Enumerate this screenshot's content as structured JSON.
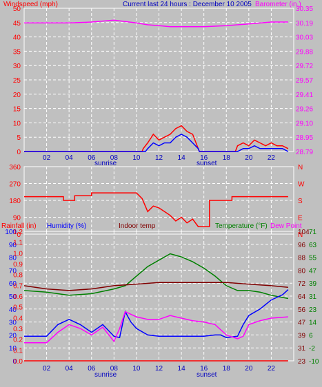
{
  "chart_data": [
    {
      "type": "line",
      "title": "Current last 24 hours : December 10 2005",
      "ylabel": "Windspeed (mph)",
      "y2label": "Barometer (in.)",
      "xticks": [
        "02",
        "04",
        "06",
        "08",
        "10",
        "12",
        "14",
        "16",
        "18",
        "20",
        "22"
      ],
      "xlim": [
        0,
        24
      ],
      "ylim": [
        0,
        50
      ],
      "yticks": [
        "0",
        "5",
        "10",
        "15",
        "20",
        "25",
        "30",
        "35",
        "40",
        "45",
        "50"
      ],
      "y2lim": [
        28.79,
        30.35
      ],
      "y2ticks": [
        "28.79",
        "28.95",
        "29.10",
        "29.26",
        "29.41",
        "29.57",
        "29.72",
        "29.88",
        "30.03",
        "30.19",
        "30.35"
      ],
      "annotations": [
        "sunrise",
        "sunset"
      ],
      "colors": {
        "windspeed_axis": "#ff0000",
        "gust": "#ff0000",
        "speed": "#0000ff",
        "barometer": "#ff00ff",
        "title": "#0000c0"
      },
      "series": [
        {
          "axis": "y2",
          "x": [
            0,
            2,
            4,
            6,
            8,
            10,
            11,
            12,
            13,
            14,
            15,
            16,
            18,
            20,
            22,
            23.5
          ],
          "values": [
            30.19,
            30.19,
            30.19,
            30.2,
            30.22,
            30.19,
            30.17,
            30.16,
            30.15,
            30.15,
            30.15,
            30.15,
            30.16,
            30.18,
            30.2,
            30.2
          ]
        },
        {
          "axis": "y",
          "x": [
            0,
            10.5,
            10.6,
            11,
            11.5,
            12,
            12.5,
            13,
            13.5,
            14,
            14.5,
            15,
            15.3,
            15.6,
            18.8,
            19,
            19.5,
            20,
            20.5,
            21,
            21.5,
            22,
            22.5,
            23,
            23.5
          ],
          "values": [
            0,
            0,
            1,
            3,
            6,
            4,
            5,
            6,
            8,
            9,
            7,
            6,
            3,
            0,
            0,
            2,
            3,
            2,
            4,
            3,
            2,
            3,
            2,
            2,
            1
          ]
        },
        {
          "axis": "y",
          "x": [
            0,
            10.8,
            11,
            11.5,
            12,
            12.5,
            13,
            13.5,
            14,
            14.5,
            15,
            15.5,
            15.6,
            19,
            19.5,
            20,
            20.5,
            21,
            21.5,
            22,
            22.5,
            23,
            23.5
          ],
          "values": [
            0,
            0,
            1,
            3,
            2,
            3,
            3,
            5,
            6,
            5,
            3,
            1,
            0,
            0,
            1,
            1,
            2,
            1,
            1,
            1,
            1,
            1,
            0
          ]
        }
      ]
    },
    {
      "type": "line",
      "xlim": [
        0,
        24
      ],
      "ylim": [
        0,
        360
      ],
      "yticks": [
        "0",
        "90",
        "180",
        "270",
        "360"
      ],
      "y2ticks": [
        "N",
        "E",
        "S",
        "W",
        "N"
      ],
      "series": [
        {
          "x": [
            0,
            3.5,
            3.5,
            4.5,
            4.5,
            6,
            6,
            10,
            10.5,
            11,
            11.5,
            12,
            12.5,
            13,
            13.5,
            14,
            14.5,
            15,
            15.5,
            16.5,
            16.5,
            18.5,
            18.5,
            23.5
          ],
          "values": [
            200,
            200,
            180,
            180,
            205,
            205,
            220,
            220,
            190,
            120,
            150,
            140,
            120,
            100,
            70,
            90,
            60,
            80,
            40,
            40,
            180,
            180,
            200,
            200
          ]
        }
      ]
    },
    {
      "type": "line",
      "labels": [
        "Rainfall (in)",
        "Humidity (%)",
        "Indoor temp",
        "Temperature (°F)",
        "Dew Point"
      ],
      "colors": {
        "rain": "#ff0000",
        "humidity": "#0000ff",
        "indoor": "#800000",
        "temperature": "#008000",
        "dewpoint": "#ff00ff"
      },
      "xlim": [
        0,
        24
      ],
      "yticks_rain": [
        "0.0",
        "0.1",
        "0.2",
        "0.3",
        "0.4",
        "0.5",
        "0.6",
        "0.7",
        "0.8",
        "0.9",
        "1.0",
        "1.1",
        "1.2"
      ],
      "yticks_humidity": [
        "0",
        "10",
        "20",
        "30",
        "40",
        "50",
        "60",
        "70",
        "80",
        "90",
        "100"
      ],
      "yticks_temp": [
        "23",
        "31",
        "39",
        "47",
        "56",
        "64",
        "72",
        "80",
        "88",
        "96",
        "104"
      ],
      "yticks_dew": [
        "-10",
        "-2",
        "6",
        "14",
        "23",
        "31",
        "39",
        "47",
        "55",
        "63",
        "71"
      ],
      "annotations": [
        "sunrise",
        "sunset"
      ],
      "series": [
        {
          "name": "Temperature (°F)",
          "x": [
            0,
            2,
            4,
            6,
            8,
            9,
            10,
            11,
            12,
            13,
            14,
            15,
            16,
            17,
            18,
            19,
            20,
            21,
            22,
            23.5
          ],
          "values": [
            67,
            66,
            64,
            65,
            68,
            70,
            76,
            82,
            86,
            90,
            88,
            85,
            81,
            76,
            70,
            67,
            67,
            66,
            64,
            62
          ]
        },
        {
          "name": "Indoor temp",
          "x": [
            0,
            2,
            4,
            6,
            8,
            10,
            12,
            14,
            16,
            18,
            20,
            22,
            23.5
          ],
          "values": [
            70,
            68,
            67,
            68,
            70,
            71,
            72,
            72,
            72,
            72,
            71,
            70,
            69
          ]
        },
        {
          "name": "Humidity (%)",
          "x": [
            0,
            2,
            3,
            4,
            5,
            6,
            7,
            8,
            8.5,
            9,
            9.5,
            10,
            11,
            12,
            13,
            14,
            16,
            17,
            17.5,
            18,
            19,
            19.5,
            20,
            21,
            22,
            23,
            23.5
          ],
          "values": [
            19,
            19,
            28,
            32,
            28,
            22,
            28,
            19,
            18,
            38,
            30,
            25,
            20,
            19,
            19,
            19,
            19,
            20,
            20,
            18,
            19,
            28,
            35,
            40,
            47,
            51,
            55
          ]
        },
        {
          "name": "Dew Point",
          "x": [
            0,
            1,
            2,
            3,
            4,
            5,
            6,
            7,
            8,
            8.5,
            9,
            10,
            11,
            12,
            13,
            14,
            15,
            16,
            17,
            18,
            19,
            19.5,
            20,
            21,
            22,
            23.5
          ],
          "values": [
            14,
            14,
            14,
            22,
            28,
            25,
            20,
            26,
            15,
            25,
            38,
            34,
            32,
            32,
            35,
            33,
            31,
            30,
            28,
            20,
            17,
            19,
            28,
            31,
            33,
            34
          ]
        },
        {
          "name": "Rainfall (in)",
          "x": [
            0,
            23.5
          ],
          "values": [
            0,
            0
          ]
        }
      ]
    }
  ]
}
